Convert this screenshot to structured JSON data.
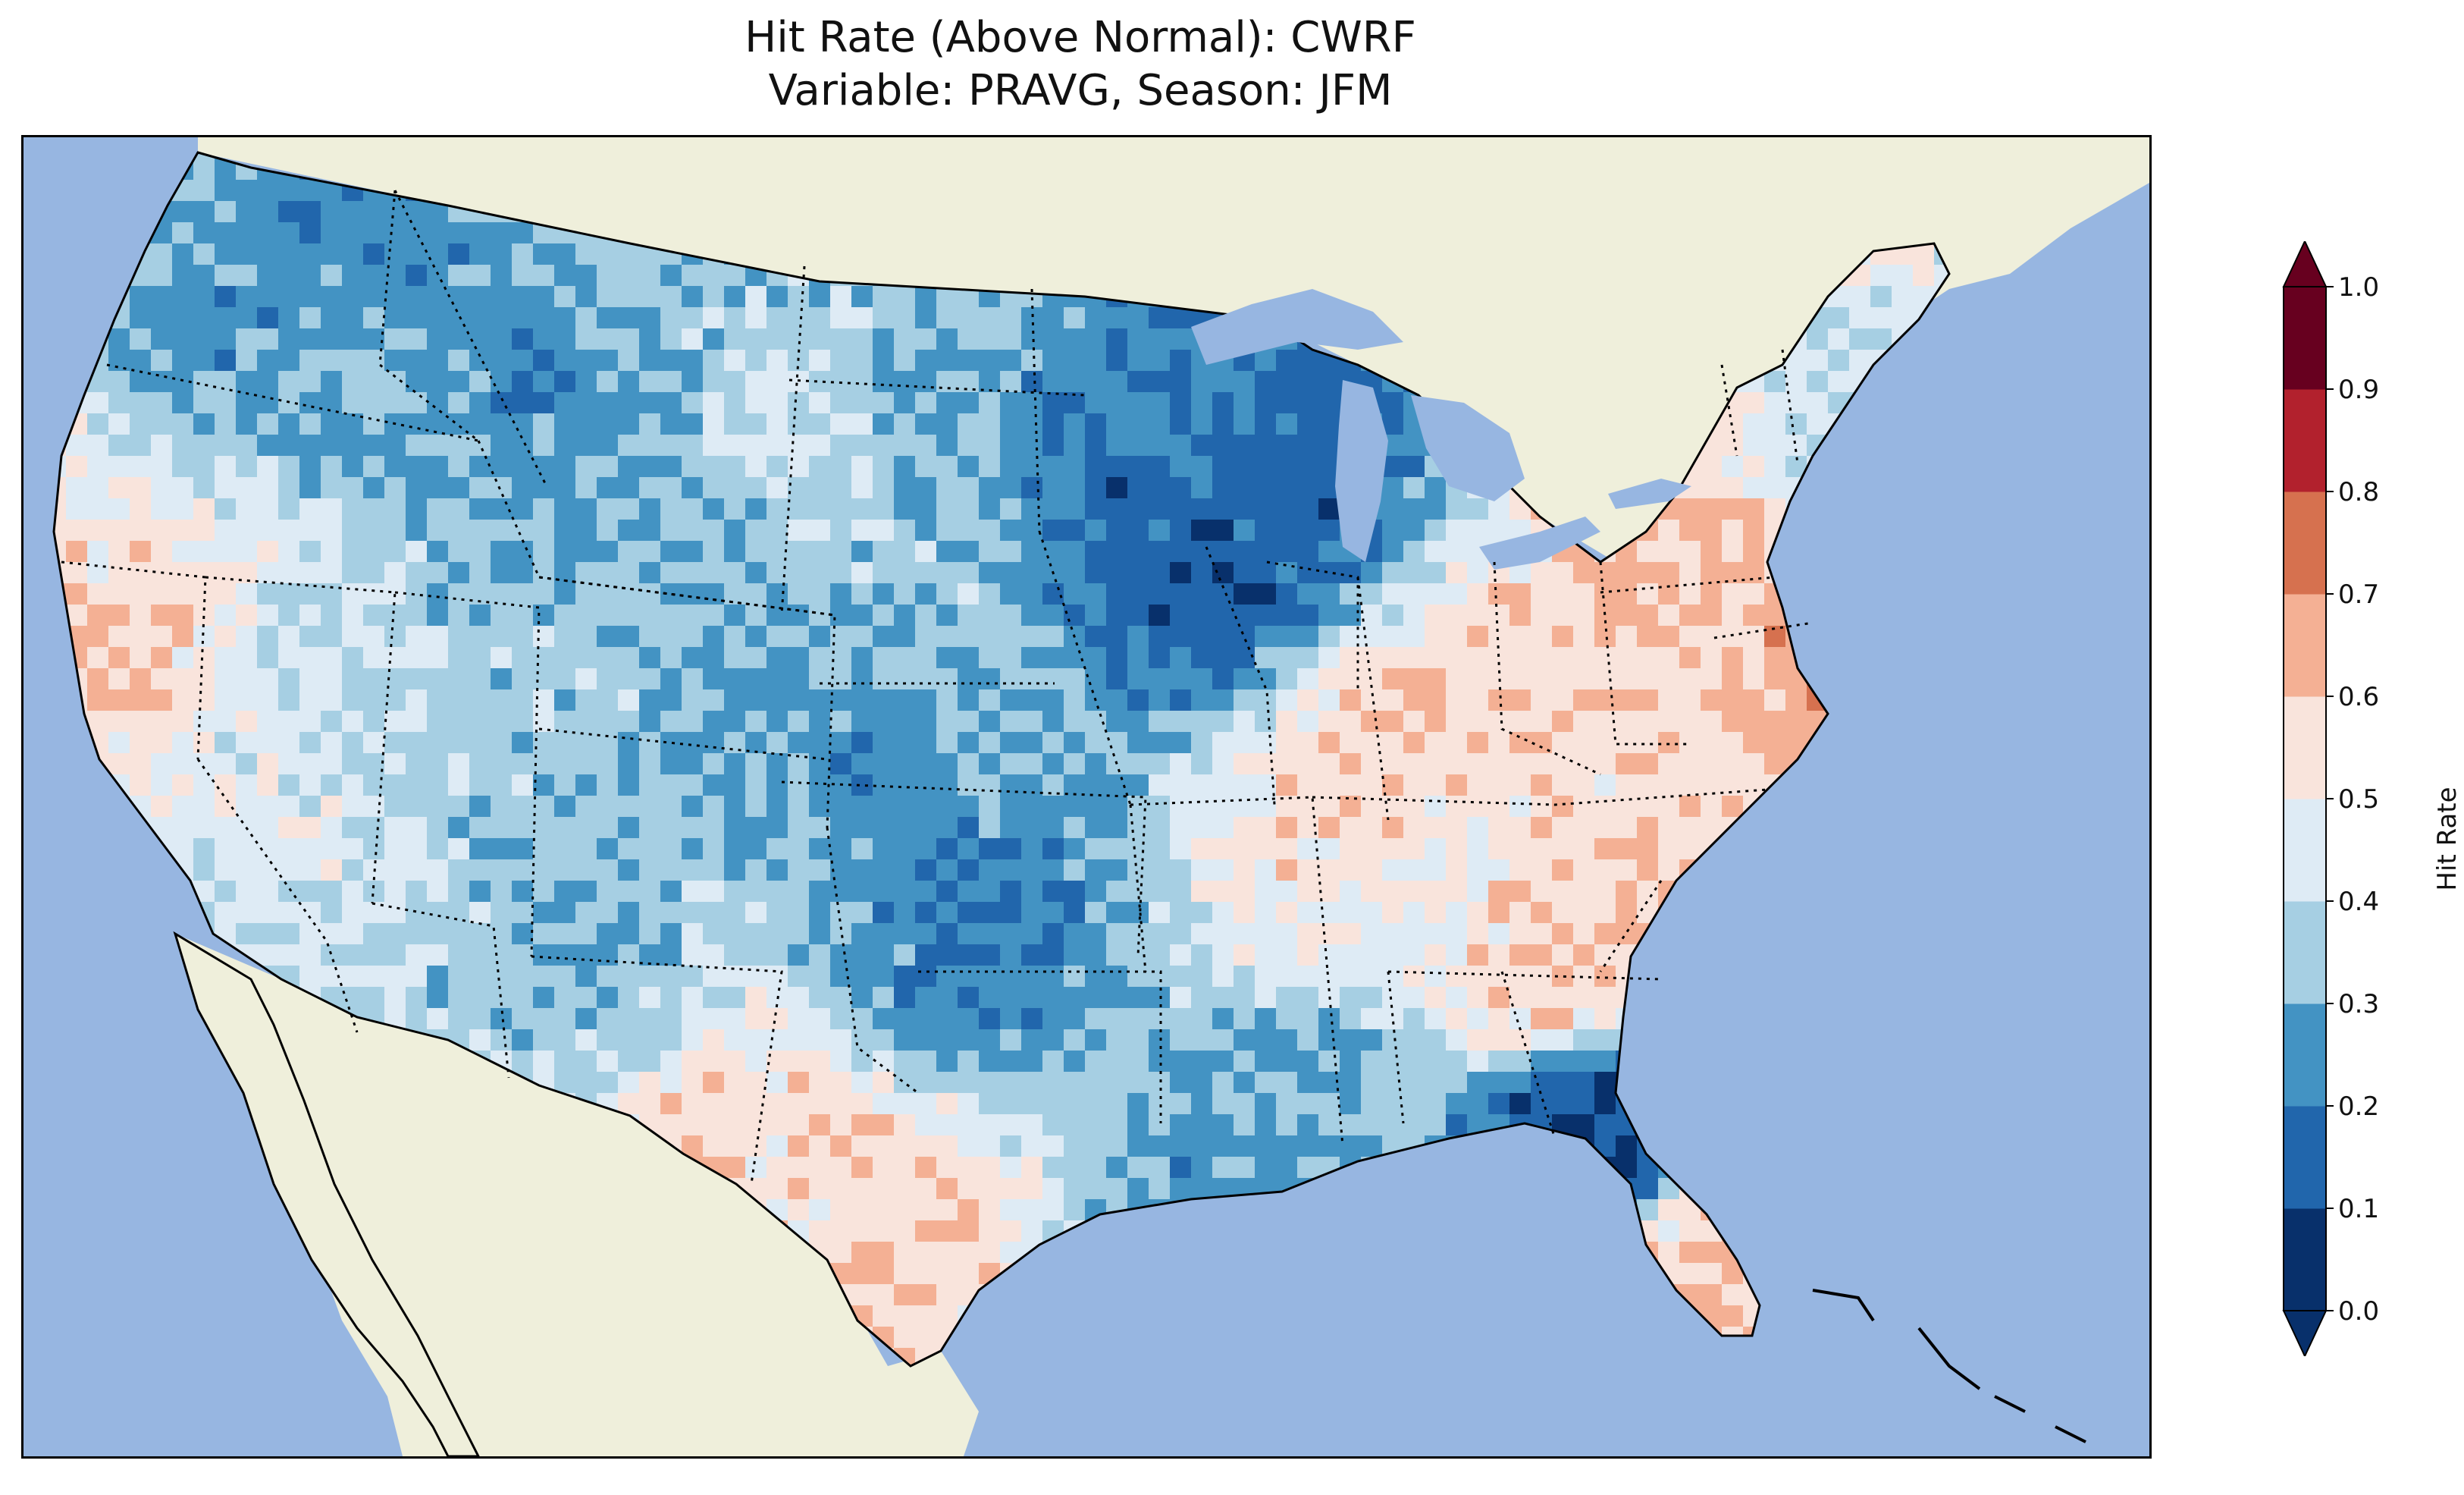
{
  "title": {
    "line1": "Hit Rate (Above Normal): CWRF",
    "line2": "Variable: PRAVG, Season: JFM"
  },
  "colorbar": {
    "label": "Hit Rate",
    "ticks": [
      "0.0",
      "0.1",
      "0.2",
      "0.3",
      "0.4",
      "0.5",
      "0.6",
      "0.7",
      "0.8",
      "0.9",
      "1.0"
    ],
    "bins": [
      {
        "range": [
          0.0,
          0.1
        ],
        "color": "#08306b"
      },
      {
        "range": [
          0.1,
          0.2
        ],
        "color": "#2166ac"
      },
      {
        "range": [
          0.2,
          0.3
        ],
        "color": "#4393c3"
      },
      {
        "range": [
          0.3,
          0.4
        ],
        "color": "#a6cfe3"
      },
      {
        "range": [
          0.4,
          0.5
        ],
        "color": "#deebf5"
      },
      {
        "range": [
          0.5,
          0.6
        ],
        "color": "#f9e4dc"
      },
      {
        "range": [
          0.6,
          0.7
        ],
        "color": "#f4b094"
      },
      {
        "range": [
          0.7,
          0.8
        ],
        "color": "#d6714f"
      },
      {
        "range": [
          0.8,
          0.9
        ],
        "color": "#b2212d"
      },
      {
        "range": [
          0.9,
          1.0
        ],
        "color": "#67001f"
      }
    ],
    "under_color": "#08306b",
    "over_color": "#67001f"
  },
  "map": {
    "extent": "Contiguous United States",
    "ocean_color": "#97b6e1",
    "land_color": "#efefdb",
    "coastline_color": "#000000",
    "state_border_style": "dotted",
    "regions": [
      {
        "area": "Pacific Northwest (WA/ID/MT)",
        "hit_rate": 0.25
      },
      {
        "area": "California coast",
        "hit_rate": 0.55
      },
      {
        "area": "Great Basin (NV/UT)",
        "hit_rate": 0.45
      },
      {
        "area": "Wyoming / Colorado",
        "hit_rate": 0.3
      },
      {
        "area": "Arizona / New Mexico",
        "hit_rate": 0.35
      },
      {
        "area": "Northern Plains (ND/SD)",
        "hit_rate": 0.35
      },
      {
        "area": "Upper Midwest (MN/WI)",
        "hit_rate": 0.15
      },
      {
        "area": "Kansas / Oklahoma",
        "hit_rate": 0.25
      },
      {
        "area": "Texas (south-central)",
        "hit_rate": 0.6
      },
      {
        "area": "Ohio Valley (KY/IN)",
        "hit_rate": 0.55
      },
      {
        "area": "Mid-Atlantic (VA/WV)",
        "hit_rate": 0.62
      },
      {
        "area": "Southeast (GA/SC)",
        "hit_rate": 0.58
      },
      {
        "area": "Gulf Coast (LA/MS)",
        "hit_rate": 0.3
      },
      {
        "area": "Florida panhandle",
        "hit_rate": 0.12
      },
      {
        "area": "South Florida",
        "hit_rate": 0.62
      },
      {
        "area": "New England",
        "hit_rate": 0.45
      }
    ]
  }
}
